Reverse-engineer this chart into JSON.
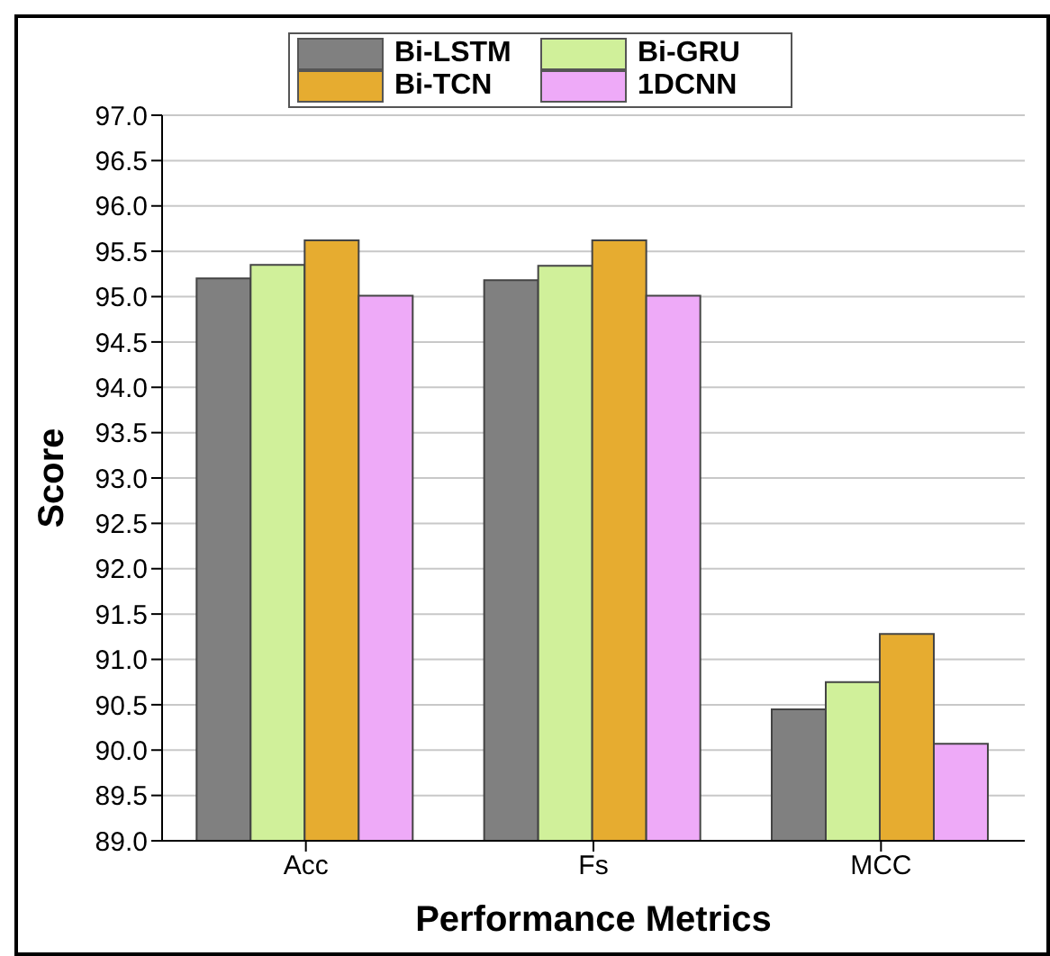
{
  "chart_data": {
    "type": "bar",
    "xlabel": "Performance Metrics",
    "ylabel": "Score",
    "categories": [
      "Acc",
      "Fs",
      "MCC"
    ],
    "series": [
      {
        "name": "Bi-LSTM",
        "color": "#808080",
        "values": [
          95.2,
          95.18,
          90.45
        ]
      },
      {
        "name": "Bi-GRU",
        "color": "#d0f09a",
        "values": [
          95.35,
          95.34,
          90.75
        ]
      },
      {
        "name": "Bi-TCN",
        "color": "#e6ac30",
        "values": [
          95.62,
          95.62,
          91.28
        ]
      },
      {
        "name": "1DCNN",
        "color": "#eeaaf8",
        "values": [
          95.01,
          95.01,
          90.07
        ]
      }
    ],
    "ylim": [
      89,
      97
    ],
    "yticks": [
      {
        "value": 89,
        "label": "89.0"
      },
      {
        "value": 89.5,
        "label": "89.5"
      },
      {
        "value": 90,
        "label": "90.0"
      },
      {
        "value": 90.5,
        "label": "90.5"
      },
      {
        "value": 91,
        "label": "91.0"
      },
      {
        "value": 91.5,
        "label": "91.5"
      },
      {
        "value": 92,
        "label": "92.0"
      },
      {
        "value": 92.5,
        "label": "92.5"
      },
      {
        "value": 93,
        "label": "93.0"
      },
      {
        "value": 93.5,
        "label": "93.5"
      },
      {
        "value": 94,
        "label": "94.0"
      },
      {
        "value": 94.5,
        "label": "94.5"
      },
      {
        "value": 95,
        "label": "95.0"
      },
      {
        "value": 95.5,
        "label": "95.5"
      },
      {
        "value": 96,
        "label": "96.0"
      },
      {
        "value": 96.5,
        "label": "96.5"
      },
      {
        "value": 97,
        "label": "97.0"
      }
    ],
    "grid": "y",
    "legend": "top"
  }
}
